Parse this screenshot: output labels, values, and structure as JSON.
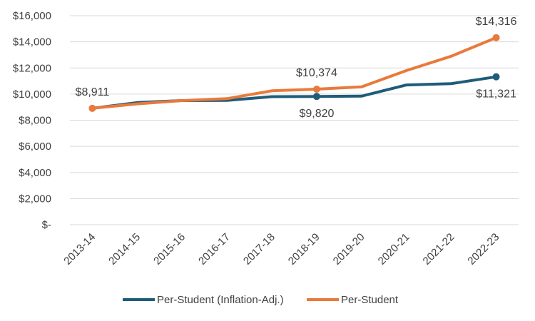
{
  "chart_data": {
    "type": "line",
    "categories": [
      "2013-14",
      "2014-15",
      "2015-16",
      "2016-17",
      "2017-18",
      "2018-19",
      "2019-20",
      "2020-21",
      "2021-22",
      "2022-23"
    ],
    "y_tick_labels": [
      "$-",
      "$2,000",
      "$4,000",
      "$6,000",
      "$8,000",
      "$10,000",
      "$12,000",
      "$14,000",
      "$16,000"
    ],
    "ylim": [
      0,
      16000
    ],
    "grid": true,
    "legend_position": "bottom",
    "series": [
      {
        "name": "Per-Student (Inflation-Adj.)",
        "color": "#1F5C7A",
        "values": [
          8911,
          9350,
          9500,
          9520,
          9800,
          9820,
          9840,
          10700,
          10800,
          11321
        ],
        "marked_points": [
          {
            "index": 5,
            "label": "$9,820",
            "position": "below"
          },
          {
            "index": 9,
            "label": "$11,321",
            "position": "below"
          }
        ]
      },
      {
        "name": "Per-Student",
        "color": "#E87A3C",
        "values": [
          8911,
          9250,
          9500,
          9650,
          10250,
          10374,
          10550,
          11800,
          12900,
          14316
        ],
        "marked_points": [
          {
            "index": 0,
            "label": "$8,911",
            "position": "above"
          },
          {
            "index": 5,
            "label": "$10,374",
            "position": "above"
          },
          {
            "index": 9,
            "label": "$14,316",
            "position": "above"
          }
        ]
      }
    ]
  }
}
